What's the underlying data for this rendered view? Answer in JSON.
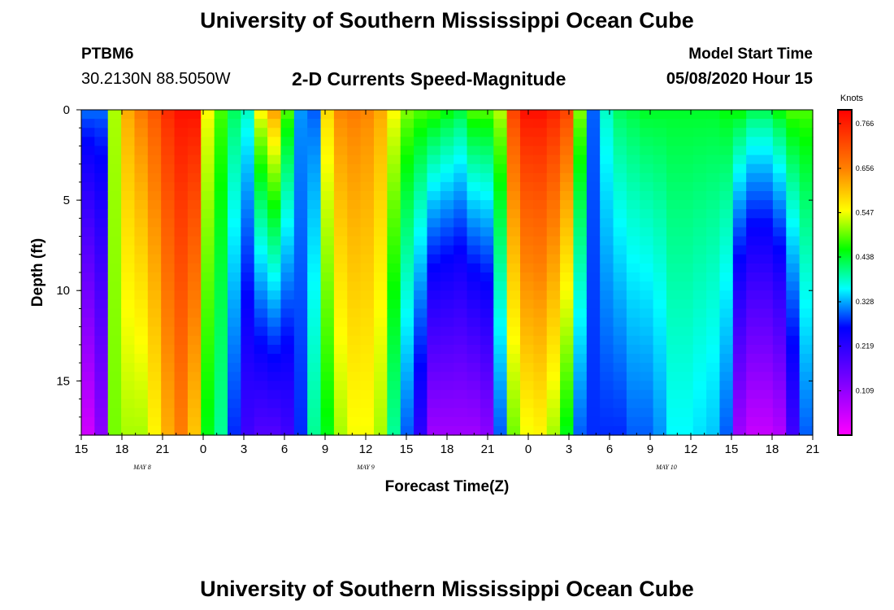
{
  "page": {
    "title": "University of Southern Mississippi Ocean Cube",
    "footer_title": "University of Southern Mississippi Ocean Cube",
    "station_id": "PTBM6",
    "coordinates": "30.2130N 88.5050W",
    "plot_title": "2-D Currents Speed-Magnitude",
    "model_start_label": "Model Start Time",
    "model_start_value": "05/08/2020 Hour 15"
  },
  "chart_data": {
    "type": "heatmap",
    "title": "2-D Currents Speed-Magnitude",
    "xlabel": "Forecast Time(Z)",
    "ylabel": "Depth (ft)",
    "x_start_hour": 15,
    "x_end_hour": 69,
    "x_tick_labels": [
      "15",
      "18",
      "21",
      "0",
      "3",
      "6",
      "9",
      "12",
      "15",
      "18",
      "21",
      "0",
      "3",
      "6",
      "9",
      "12",
      "15",
      "18",
      "21"
    ],
    "x_day_labels": [
      {
        "label": "MAY 8",
        "hour": 19.5
      },
      {
        "label": "MAY 9",
        "hour": 36
      },
      {
        "label": "MAY 10",
        "hour": 58.2
      }
    ],
    "y_range": [
      0,
      18
    ],
    "y_ticks": [
      0,
      5,
      10,
      15
    ],
    "y_tick_labels": [
      "0",
      "5",
      "10",
      "15"
    ],
    "colorbar": {
      "units": "Knots",
      "min": 0.0,
      "max": 0.8,
      "tick_values": [
        0.109,
        0.219,
        0.328,
        0.438,
        0.547,
        0.656,
        0.766
      ],
      "tick_labels": [
        "0.109",
        "0.219",
        "0.328",
        "0.438",
        "0.547",
        "0.656",
        "0.766"
      ]
    },
    "series": [
      {
        "name": "surface_speed_knots",
        "hours": [
          15,
          16,
          17,
          18,
          19,
          20,
          21,
          22,
          23,
          24,
          25,
          26,
          27,
          28,
          29,
          30,
          31,
          32,
          33,
          34,
          35,
          36,
          37,
          38,
          39,
          40,
          41,
          42,
          43,
          44,
          45,
          46,
          47,
          48,
          49,
          50,
          51,
          52,
          53,
          54,
          55,
          56,
          57,
          58,
          59,
          60,
          61,
          62,
          63,
          64,
          65,
          66,
          67,
          68,
          69
        ],
        "values": [
          0.3,
          0.3,
          0.52,
          0.62,
          0.66,
          0.7,
          0.75,
          0.78,
          0.78,
          0.55,
          0.48,
          0.42,
          0.38,
          0.55,
          0.62,
          0.48,
          0.32,
          0.3,
          0.58,
          0.65,
          0.66,
          0.65,
          0.62,
          0.55,
          0.5,
          0.48,
          0.47,
          0.45,
          0.43,
          0.48,
          0.48,
          0.52,
          0.72,
          0.78,
          0.78,
          0.76,
          0.72,
          0.5,
          0.3,
          0.38,
          0.42,
          0.43,
          0.44,
          0.44,
          0.44,
          0.44,
          0.44,
          0.44,
          0.45,
          0.45,
          0.42,
          0.42,
          0.45,
          0.48,
          0.48
        ]
      },
      {
        "name": "bottom_speed_knots",
        "hours": [
          15,
          16,
          17,
          18,
          19,
          20,
          21,
          22,
          23,
          24,
          25,
          26,
          27,
          28,
          29,
          30,
          31,
          32,
          33,
          34,
          35,
          36,
          37,
          38,
          39,
          40,
          41,
          42,
          43,
          44,
          45,
          46,
          47,
          48,
          49,
          50,
          51,
          52,
          53,
          54,
          55,
          56,
          57,
          58,
          59,
          60,
          61,
          62,
          63,
          64,
          65,
          66,
          67,
          68,
          69
        ],
        "values": [
          0.05,
          0.12,
          0.5,
          0.52,
          0.52,
          0.56,
          0.62,
          0.66,
          0.6,
          0.45,
          0.4,
          0.28,
          0.2,
          0.18,
          0.18,
          0.2,
          0.28,
          0.4,
          0.45,
          0.52,
          0.55,
          0.55,
          0.52,
          0.4,
          0.3,
          0.22,
          0.1,
          0.1,
          0.1,
          0.1,
          0.12,
          0.3,
          0.5,
          0.55,
          0.56,
          0.52,
          0.45,
          0.3,
          0.28,
          0.28,
          0.28,
          0.3,
          0.3,
          0.32,
          0.36,
          0.36,
          0.35,
          0.34,
          0.3,
          0.1,
          0.06,
          0.06,
          0.08,
          0.2,
          0.3
        ]
      }
    ]
  }
}
